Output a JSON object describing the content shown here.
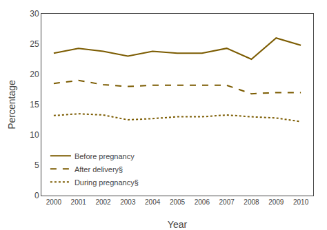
{
  "chart_data": {
    "type": "line",
    "x": [
      2000,
      2001,
      2002,
      2003,
      2004,
      2005,
      2006,
      2007,
      2008,
      2009,
      2010
    ],
    "series": [
      {
        "name": "Before pregnancy",
        "color": "#7B5B00",
        "line_style": "solid",
        "values": [
          23.5,
          24.3,
          23.8,
          23.0,
          23.8,
          23.5,
          23.5,
          24.3,
          22.5,
          26.0,
          24.8
        ]
      },
      {
        "name": "After delivery§",
        "color": "#7B5B00",
        "line_style": "dashed",
        "values": [
          18.5,
          19.0,
          18.3,
          18.0,
          18.2,
          18.2,
          18.2,
          18.2,
          16.8,
          17.0,
          17.0
        ]
      },
      {
        "name": "During pregnancy§",
        "color": "#7B5B00",
        "line_style": "dotted",
        "values": [
          13.2,
          13.5,
          13.3,
          12.5,
          12.7,
          13.0,
          13.0,
          13.3,
          13.0,
          12.8,
          12.2
        ]
      }
    ],
    "xlabel": "Year",
    "ylabel": "Percentage",
    "xlim": [
      1999.5,
      2010.5
    ],
    "xticks": [
      2000,
      2001,
      2002,
      2003,
      2004,
      2005,
      2006,
      2007,
      2008,
      2009,
      2010
    ],
    "ylim": [
      0,
      30
    ],
    "yticks": [
      0,
      5,
      10,
      15,
      20,
      25,
      30
    ],
    "grid": false,
    "legend": "lower left"
  }
}
